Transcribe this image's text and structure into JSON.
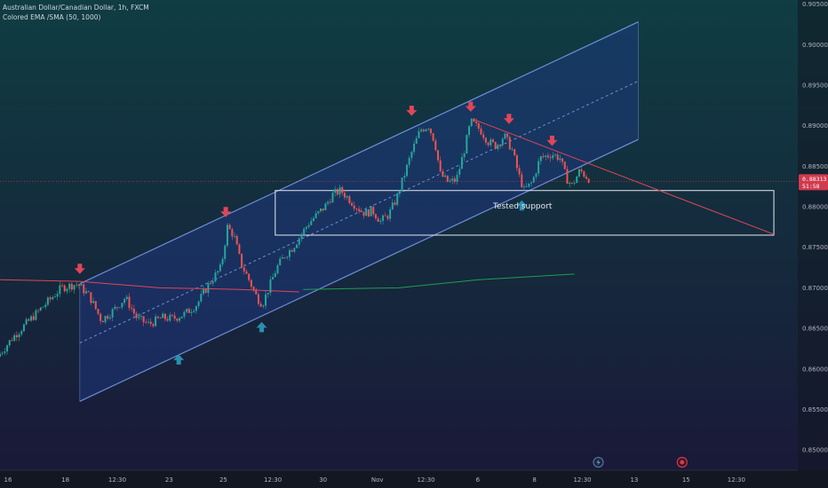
{
  "header": {
    "symbol_line": "Australian Dollar/Canadian Dollar, 1h, FXCM",
    "indicator_line": "Colored EMA /SMA (50, 1000)"
  },
  "colors": {
    "background_top": "#0f3d42",
    "background_bottom": "#1a1838",
    "up_candle": "#26a69a",
    "down_candle": "#ef5350",
    "channel_line": "#6f8fd8",
    "channel_fill": "#1e3a8a",
    "arrow_down": "#e0455a",
    "arrow_up": "#2a8fb0",
    "ema_red": "#e0455a",
    "sma_green": "#1f9d55",
    "support_box": "#e8e8ee",
    "price_badge": "#d23a4e"
  },
  "chart_data": {
    "type": "candlestick",
    "title": "Australian Dollar/Canadian Dollar, 1h, FXCM",
    "indicator": "Colored EMA /SMA (50, 1000)",
    "y_axis": {
      "range": [
        0.8475,
        0.9055
      ],
      "tick_labels": [
        "0.90500",
        "0.90000",
        "0.89500",
        "0.89000",
        "0.88500",
        "0.88000",
        "0.87500",
        "0.87000",
        "0.86500",
        "0.86000",
        "0.85500",
        "0.85000"
      ],
      "ticks": [
        0.905,
        0.9,
        0.895,
        0.89,
        0.885,
        0.88,
        0.875,
        0.87,
        0.865,
        0.86,
        0.855,
        0.85
      ]
    },
    "x_axis": {
      "range": [
        0,
        100
      ],
      "tick_labels": [
        "16",
        "18",
        "12:30",
        "23",
        "25",
        "12:30",
        "30",
        "Nov",
        "12:30",
        "6",
        "8",
        "12:30",
        "13",
        "15",
        "12:30"
      ],
      "ticks": [
        1,
        8.2,
        14.7,
        21.2,
        28,
        34.2,
        40.5,
        47.3,
        53.4,
        59.9,
        67,
        73,
        79.5,
        86,
        92.3
      ]
    },
    "price_path": [
      [
        0,
        0.8615
      ],
      [
        2,
        0.864
      ],
      [
        4,
        0.866
      ],
      [
        6,
        0.868
      ],
      [
        8,
        0.87
      ],
      [
        10,
        0.8705
      ],
      [
        11.5,
        0.869
      ],
      [
        13,
        0.866
      ],
      [
        14.5,
        0.8672
      ],
      [
        16,
        0.8688
      ],
      [
        17.5,
        0.8662
      ],
      [
        19,
        0.8655
      ],
      [
        20.5,
        0.8663
      ],
      [
        22,
        0.8662
      ],
      [
        23.5,
        0.8668
      ],
      [
        25,
        0.868
      ],
      [
        26.5,
        0.8705
      ],
      [
        28,
        0.8725
      ],
      [
        28.8,
        0.8775
      ],
      [
        29.6,
        0.8765
      ],
      [
        30.5,
        0.873
      ],
      [
        31.5,
        0.871
      ],
      [
        32.5,
        0.8688
      ],
      [
        33.2,
        0.868
      ],
      [
        34,
        0.87
      ],
      [
        35,
        0.8725
      ],
      [
        36,
        0.874
      ],
      [
        37,
        0.875
      ],
      [
        38,
        0.8765
      ],
      [
        39,
        0.878
      ],
      [
        40,
        0.879
      ],
      [
        41,
        0.88
      ],
      [
        42,
        0.8815
      ],
      [
        43,
        0.882
      ],
      [
        44,
        0.881
      ],
      [
        45,
        0.88
      ],
      [
        46,
        0.8792
      ],
      [
        47,
        0.8795
      ],
      [
        48,
        0.8782
      ],
      [
        49,
        0.879
      ],
      [
        50,
        0.881
      ],
      [
        51,
        0.884
      ],
      [
        52,
        0.887
      ],
      [
        53,
        0.8895
      ],
      [
        54,
        0.89
      ],
      [
        54.8,
        0.888
      ],
      [
        55.5,
        0.884
      ],
      [
        56.5,
        0.883
      ],
      [
        57.5,
        0.8833
      ],
      [
        58.5,
        0.887
      ],
      [
        59.3,
        0.8905
      ],
      [
        60.5,
        0.8895
      ],
      [
        61.5,
        0.888
      ],
      [
        62.5,
        0.8875
      ],
      [
        63.5,
        0.8888
      ],
      [
        64.5,
        0.887
      ],
      [
        65.3,
        0.884
      ],
      [
        66,
        0.882
      ],
      [
        67,
        0.883
      ],
      [
        68,
        0.886
      ],
      [
        69.5,
        0.8865
      ],
      [
        70.5,
        0.886
      ],
      [
        71.3,
        0.8835
      ],
      [
        72,
        0.8826
      ],
      [
        73,
        0.8845
      ],
      [
        74,
        0.8835
      ]
    ],
    "last_price": "0.88313",
    "countdown": "51:58",
    "channel": {
      "upper": [
        [
          10,
          0.8705
        ],
        [
          80,
          0.9028
        ]
      ],
      "lower": [
        [
          10,
          0.856
        ],
        [
          80,
          0.8883
        ]
      ],
      "midline": [
        [
          10,
          0.8632
        ],
        [
          80,
          0.8955
        ]
      ]
    },
    "resistance_line": [
      [
        59.3,
        0.8908
      ],
      [
        97,
        0.8766
      ]
    ],
    "support_zone": {
      "price_top": 0.882,
      "price_bottom": 0.8765,
      "x_start": 34.5,
      "x_end": 97
    },
    "indicator_lines": {
      "ema_red": [
        [
          0,
          0.871
        ],
        [
          10,
          0.8708
        ],
        [
          20,
          0.87
        ],
        [
          30,
          0.8698
        ],
        [
          37.5,
          0.8695
        ]
      ],
      "sma_green": [
        [
          38,
          0.8698
        ],
        [
          50,
          0.87
        ],
        [
          60,
          0.871
        ],
        [
          72,
          0.8717
        ]
      ]
    },
    "markers": {
      "down_arrows": [
        [
          10,
          0.871
        ],
        [
          28.3,
          0.878
        ],
        [
          51.6,
          0.8905
        ],
        [
          59,
          0.891
        ],
        [
          63.8,
          0.8895
        ],
        [
          69.2,
          0.8868
        ]
      ],
      "up_arrows": [
        [
          22.4,
          0.8625
        ],
        [
          32.8,
          0.8665
        ],
        [
          65.4,
          0.8815
        ]
      ]
    },
    "annotations": [
      {
        "text": "Tested support",
        "x": 65.5,
        "y": 0.8798
      }
    ],
    "grid": false
  }
}
